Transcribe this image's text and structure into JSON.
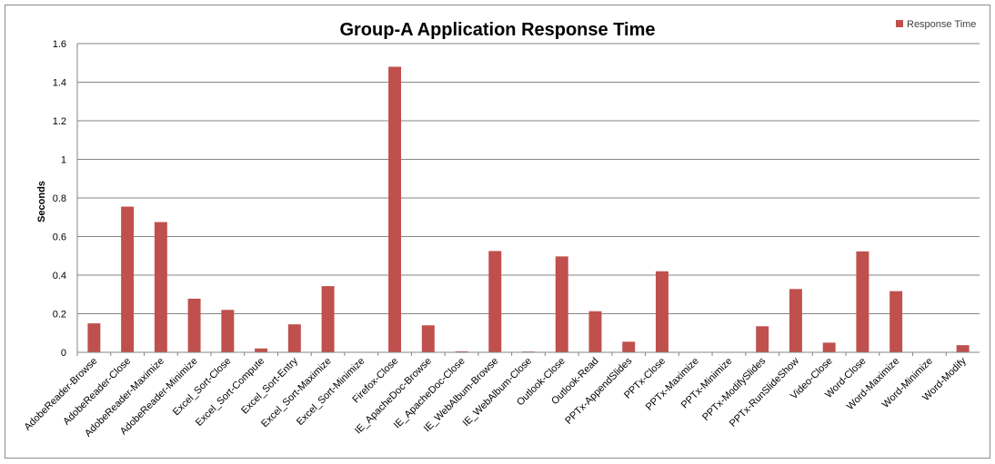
{
  "chart_data": {
    "type": "bar",
    "title": "Group-A Application Response Time",
    "xlabel": "",
    "ylabel": "Seconds",
    "ylim": [
      0,
      1.6
    ],
    "yticks": [
      "0",
      "0.2",
      "0.4",
      "0.6",
      "0.8",
      "1",
      "1.2",
      "1.4",
      "1.6"
    ],
    "grid": true,
    "legend_position": "top-right",
    "categories": [
      "AdobeReader-Browse",
      "AdobeReader-Close",
      "AdobeReader-Maximize",
      "AdobeReader-Minimize",
      "Excel_Sort-Close",
      "Excel_Sort-Compute",
      "Excel_Sort-Entry",
      "Excel_Sort-Maximize",
      "Excel_Sort-Minimize",
      "Firefox-Close",
      "IE_ApacheDoc-Browse",
      "IE_ApacheDoc-Close",
      "IE_WebAlbum-Browse",
      "IE_WebAlbum-Close",
      "Outlook-Close",
      "Outlook-Read",
      "PPTx-AppendSlides",
      "PPTx-Close",
      "PPTx-Maximize",
      "PPTx-Minimize",
      "PPTx-ModifySlides",
      "PPTx-RunSlideShow",
      "Video-Close",
      "Word-Close",
      "Word-Maximize",
      "Word-Minimize",
      "Word-Modify"
    ],
    "series": [
      {
        "name": "Response Time",
        "color": "#c0504d",
        "values": [
          0.15,
          0.755,
          0.675,
          0.278,
          0.22,
          0.02,
          0.145,
          0.343,
          0.0,
          1.48,
          0.14,
          0.005,
          0.525,
          0.004,
          0.497,
          0.213,
          0.055,
          0.42,
          0.0,
          0.0,
          0.135,
          0.328,
          0.05,
          0.523,
          0.317,
          0.0,
          0.037
        ]
      }
    ]
  }
}
